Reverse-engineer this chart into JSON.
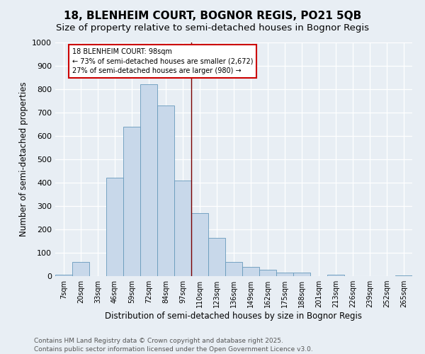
{
  "title": "18, BLENHEIM COURT, BOGNOR REGIS, PO21 5QB",
  "subtitle": "Size of property relative to semi-detached houses in Bognor Regis",
  "xlabel": "Distribution of semi-detached houses by size in Bognor Regis",
  "ylabel": "Number of semi-detached properties",
  "bin_labels": [
    "7sqm",
    "20sqm",
    "33sqm",
    "46sqm",
    "59sqm",
    "72sqm",
    "84sqm",
    "97sqm",
    "110sqm",
    "123sqm",
    "136sqm",
    "149sqm",
    "162sqm",
    "175sqm",
    "188sqm",
    "201sqm",
    "213sqm",
    "226sqm",
    "239sqm",
    "252sqm",
    "265sqm"
  ],
  "bar_values": [
    5,
    60,
    0,
    420,
    640,
    820,
    730,
    410,
    270,
    165,
    60,
    40,
    28,
    15,
    15,
    0,
    5,
    0,
    0,
    0,
    3
  ],
  "bar_color": "#c8d8ea",
  "bar_edge_color": "#6699bb",
  "vline_color": "#7a0000",
  "annotation_title": "18 BLENHEIM COURT: 98sqm",
  "annotation_line1": "← 73% of semi-detached houses are smaller (2,672)",
  "annotation_line2": "27% of semi-detached houses are larger (980) →",
  "annotation_box_color": "#ffffff",
  "annotation_box_edge": "#cc0000",
  "ylim": [
    0,
    1000
  ],
  "yticks": [
    0,
    100,
    200,
    300,
    400,
    500,
    600,
    700,
    800,
    900,
    1000
  ],
  "footer_line1": "Contains HM Land Registry data © Crown copyright and database right 2025.",
  "footer_line2": "Contains public sector information licensed under the Open Government Licence v3.0.",
  "bg_color": "#e8eef4",
  "grid_color": "#ffffff",
  "title_fontsize": 11,
  "subtitle_fontsize": 9.5,
  "axis_label_fontsize": 8.5,
  "tick_fontsize": 8,
  "xtick_fontsize": 7,
  "footer_fontsize": 6.5
}
